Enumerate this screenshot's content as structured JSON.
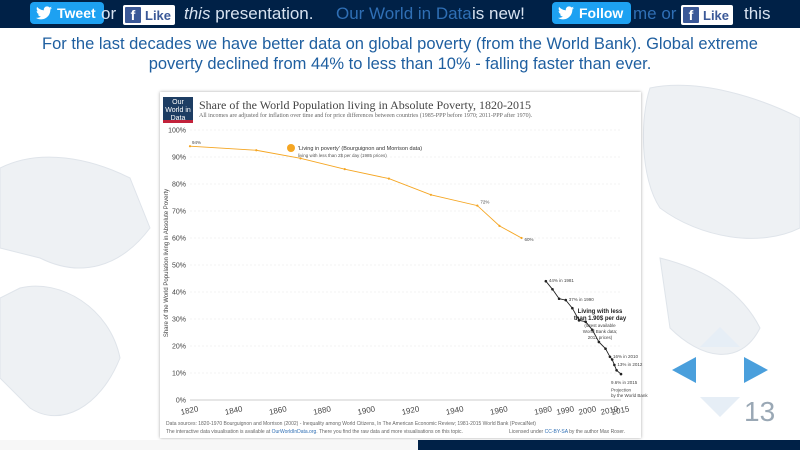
{
  "topbar": {
    "tweet_label": "Tweet",
    "or_1": "or",
    "like_label_1": "Like",
    "this_word": "this",
    "presentation_word": " presentation.",
    "owid_text": "Our World in Data",
    "is_new_text": " is new!",
    "follow_label": "Follow",
    "me_or_text": "me or",
    "like_label_2": "Like",
    "this_end": "this"
  },
  "intro": {
    "text": "For the last decades we have better data on global poverty (from the World Bank). Global extreme poverty declined from 44% to less than 10% - falling faster than ever."
  },
  "chart_header": {
    "logo": "Our World in Data",
    "title": "Share of the World Population living in Absolute Poverty, 1820-2015",
    "subtitle": "All incomes are adjusted for inflation over time and for price differences between countries (1985-PPP before 1970; 2011-PPP after 1970).",
    "source": "Data sources: 1820-1970 Bourguignon and Morrison (2002) - Inequality among World Citizens, In The American Economic Review; 1981-2015 World Bank (PovcalNet)",
    "source2_prefix": "The interactive data visualisation is available at ",
    "source2_link": "OurWorldInData.org",
    "source2_suffix": ". There you find the raw data and more visualisations on this topic.",
    "license_prefix": "Licensed under ",
    "license_link": "CC-BY-SA",
    "license_suffix": " by the author Max Roser."
  },
  "chart_data": {
    "type": "line",
    "title": "Share of the World Population living in Absolute Poverty, 1820-2015",
    "ylabel": "Share of the World Population living in Absolute Poverty",
    "xlim": [
      1820,
      2015
    ],
    "ylim": [
      0,
      100
    ],
    "x_ticks": [
      "1820",
      "1840",
      "1860",
      "1880",
      "1900",
      "1920",
      "1940",
      "1960",
      "1980",
      "2000",
      "2015"
    ],
    "y_ticks": [
      "0%",
      "10%",
      "20%",
      "30%",
      "40%",
      "50%",
      "60%",
      "70%",
      "80%",
      "90%",
      "100%"
    ],
    "x_ticks_extra": [
      "1990",
      "2010"
    ],
    "grid": true,
    "legend": {
      "title": "'Living in poverty' (Bourguignon and Morrison data)",
      "subtitle": "living with less than 2$ per day (1985 prices)",
      "placement": "top-left"
    },
    "series": [
      {
        "name": "'Living in poverty' (Bourguignon and Morrison data)",
        "color": "#f5a623",
        "x": [
          1820,
          1850,
          1870,
          1890,
          1910,
          1929,
          1950,
          1960,
          1970
        ],
        "y": [
          94,
          92.5,
          89.5,
          85.5,
          82,
          76,
          72,
          64.5,
          60
        ]
      },
      {
        "name": "Living with less than 1.90$ per day",
        "color": "#222222",
        "x": [
          1981,
          1984,
          1987,
          1990,
          1993,
          1996,
          1999,
          2002,
          2005,
          2008,
          2010,
          2011,
          2012,
          2013,
          2015
        ],
        "y": [
          44,
          41,
          37.5,
          37,
          34,
          29.5,
          29,
          26,
          21.5,
          19,
          16,
          15,
          13,
          11,
          9.6
        ]
      }
    ],
    "annotations": [
      {
        "text": "94%",
        "x": 1820,
        "y": 94
      },
      {
        "text": "72%",
        "x": 1950,
        "y": 72
      },
      {
        "text": "60%",
        "x": 1970,
        "y": 60
      },
      {
        "text": "44% in 1981",
        "x": 1981,
        "y": 44
      },
      {
        "text": "37% in 1990",
        "x": 1990,
        "y": 37
      },
      {
        "text": "16% in 2010",
        "x": 2010,
        "y": 16
      },
      {
        "text": "13% in 2012",
        "x": 2012,
        "y": 13
      },
      {
        "text": "9.6% in 2015",
        "x": 2015,
        "y": 9.6
      },
      {
        "text": "Projection",
        "x": 2015,
        "y": 6.8
      },
      {
        "text": "by the World Bank",
        "x": 2015,
        "y": 4.9
      }
    ],
    "box_note": {
      "line1": "Living with less",
      "line2": "than 1.90$ per day",
      "line3": "(latest available",
      "line4": "World Bank data;",
      "line5": "2011 prices)"
    }
  },
  "slide": {
    "number": "13"
  },
  "colors": {
    "topbar_bg": "#002147",
    "twitter": "#1da1f2",
    "facebook": "#3b5998",
    "intro_text": "#1f5fa0",
    "nav_arrow": "#4a9fdc"
  }
}
